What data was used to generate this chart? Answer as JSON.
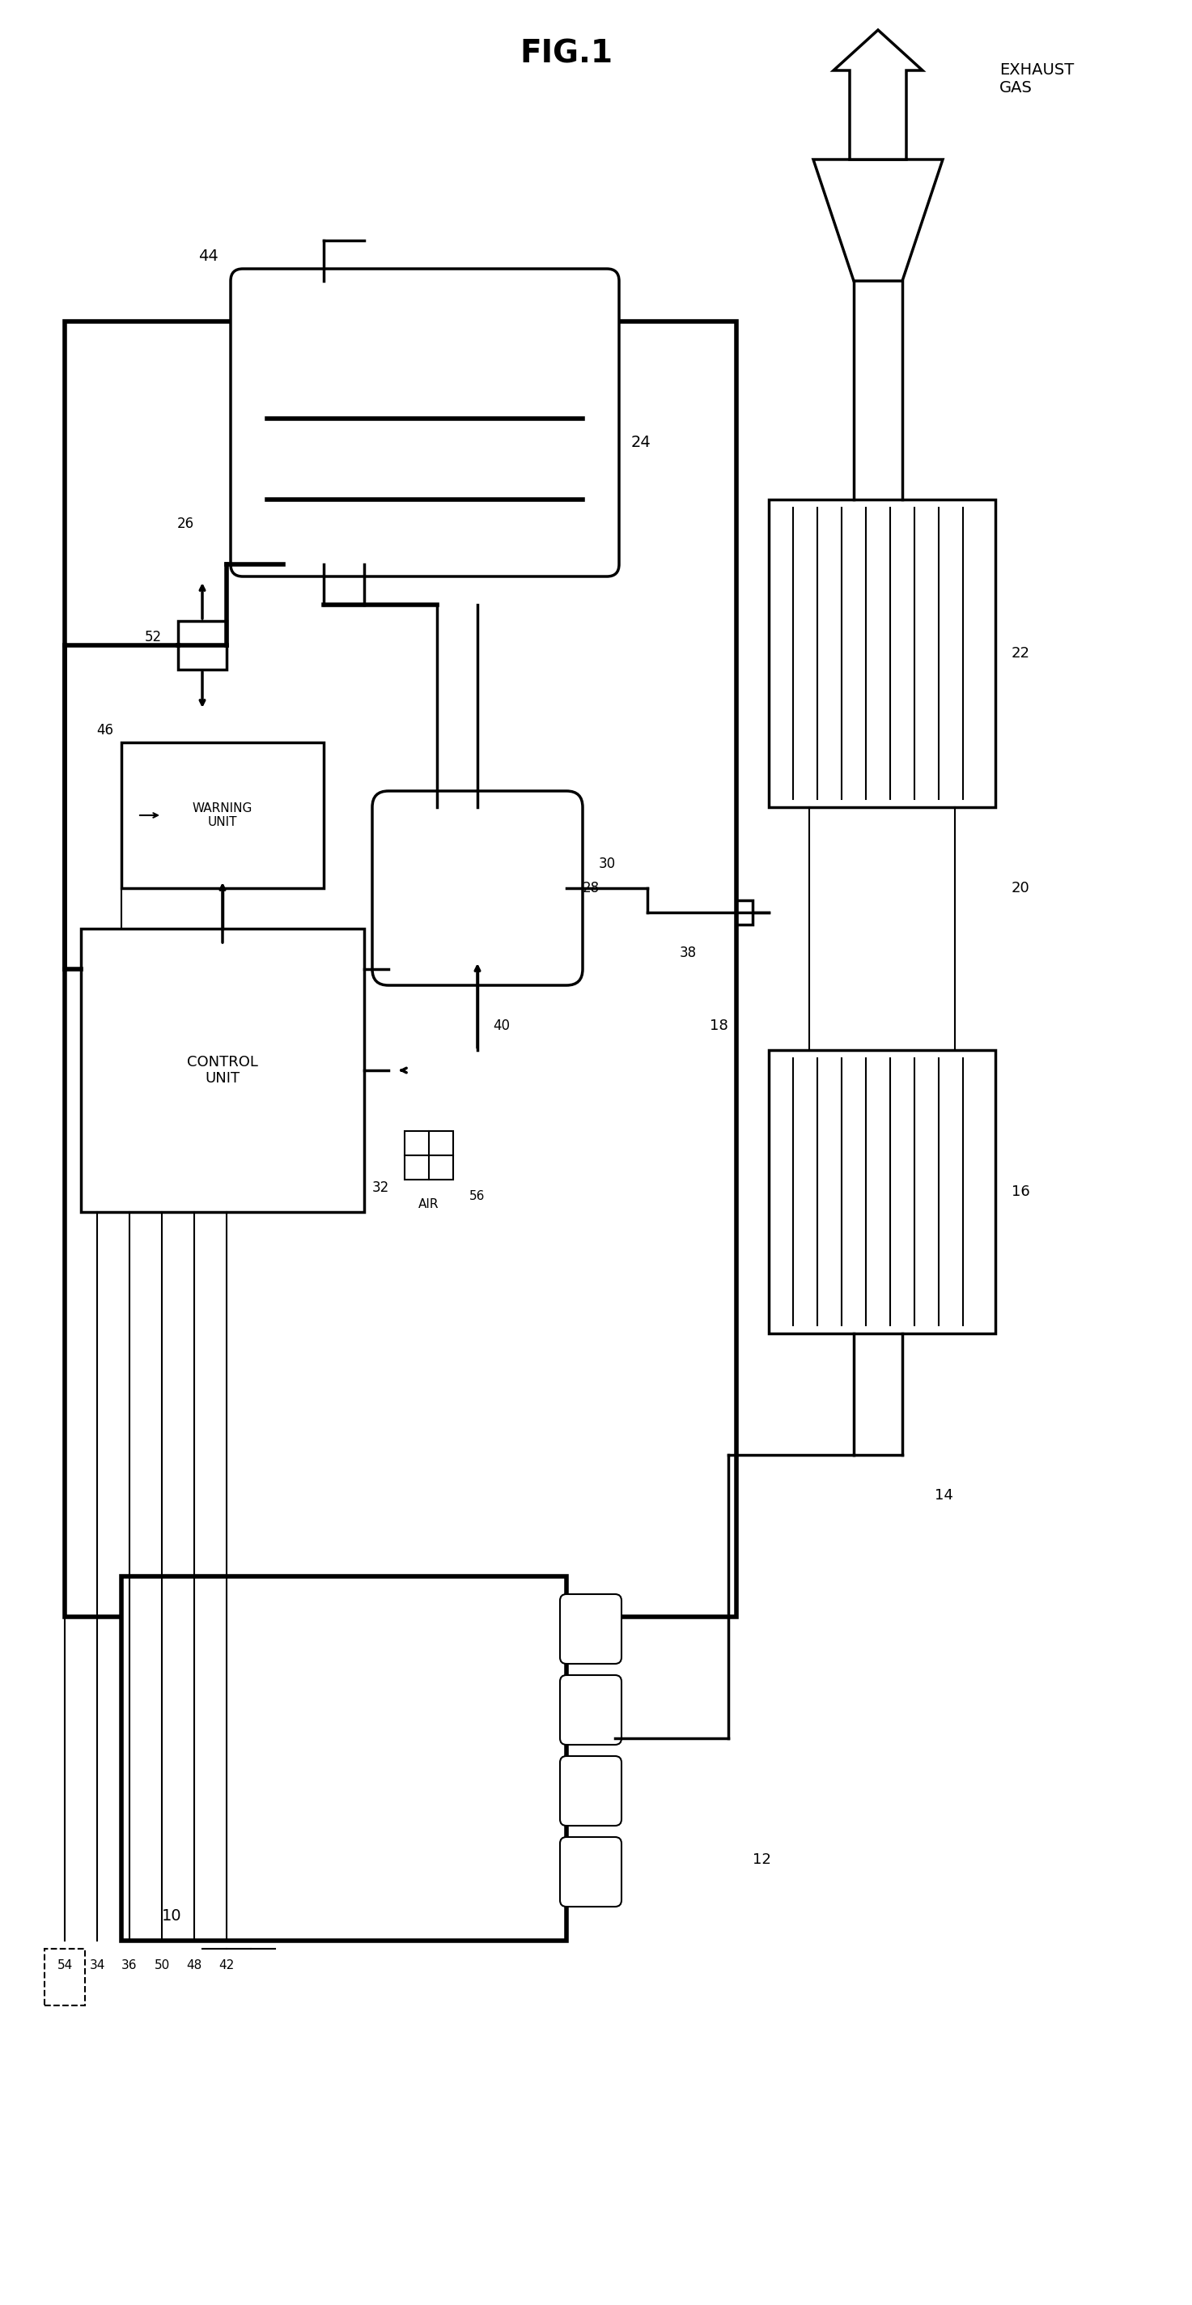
{
  "title": "FIG.1",
  "bg_color": "#ffffff",
  "line_color": "#000000",
  "fig_width": 14.73,
  "fig_height": 28.47,
  "labels": {
    "exhaust_gas": "EXHAUST\nGAS",
    "warning_unit": "WARNING\nUNIT",
    "control_unit": "CONTROL\nUNIT",
    "air": "AIR"
  },
  "ref_numbers": [
    "10",
    "12",
    "14",
    "16",
    "18",
    "20",
    "22",
    "24",
    "26",
    "28",
    "30",
    "32",
    "34",
    "36",
    "38",
    "40",
    "42",
    "44",
    "46",
    "48",
    "50",
    "52",
    "54",
    "56"
  ]
}
